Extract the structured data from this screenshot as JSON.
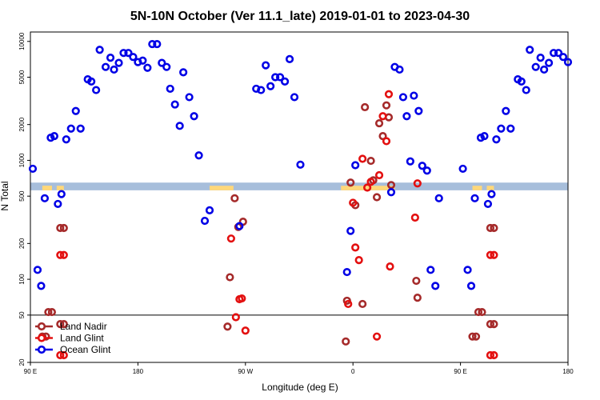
{
  "chart_data": {
    "type": "scatter",
    "title": "5N-10N October (Ver 11.1_late)   2019-01-01 to 2023-04-30",
    "xlabel": "Longitude (deg E)",
    "ylabel": "N Total",
    "x_scale": "longitude, centred on 0, wrapping from 90 E (left) through 180 to 180 (right)",
    "y_scale": "log",
    "ylim": [
      20,
      12000
    ],
    "x_ticks": [
      {
        "lon": 90,
        "label": "90 E"
      },
      {
        "lon": 180,
        "label": "180"
      },
      {
        "lon": -90,
        "label": "90 W"
      },
      {
        "lon": 0,
        "label": "0"
      },
      {
        "lon": 90,
        "label": "90 E"
      },
      {
        "lon": 180,
        "label": "180"
      }
    ],
    "y_ticks": [
      {
        "value": 20,
        "label": "20"
      },
      {
        "value": 50,
        "label": "50"
      },
      {
        "value": 100,
        "label": "100"
      },
      {
        "value": 200,
        "label": "200"
      },
      {
        "value": 500,
        "label": "500"
      },
      {
        "value": 1000,
        "label": "1000"
      },
      {
        "value": 2000,
        "label": "2000"
      },
      {
        "value": 5000,
        "label": "5000"
      },
      {
        "value": 10000,
        "label": "10000"
      }
    ],
    "reference_line": 50,
    "grid": false,
    "legend_position": "bottom-left",
    "colors": {
      "land_band": "#a7bedb",
      "land_fill": "#ffd87a",
      "frame": "#000000"
    },
    "series": [
      {
        "name": "Land Nadir",
        "color": "#a52a2a",
        "points": [
          {
            "lon": 100,
            "n": 33
          },
          {
            "lon": 105,
            "n": 53
          },
          {
            "lon": 115,
            "n": 270
          },
          {
            "lon": 115,
            "n": 42
          },
          {
            "lon": -105,
            "n": 40
          },
          {
            "lon": -103,
            "n": 104
          },
          {
            "lon": -99,
            "n": 480
          },
          {
            "lon": -96,
            "n": 275
          },
          {
            "lon": -92,
            "n": 305
          },
          {
            "lon": -6,
            "n": 30
          },
          {
            "lon": -5,
            "n": 66
          },
          {
            "lon": -2,
            "n": 650
          },
          {
            "lon": 2,
            "n": 420
          },
          {
            "lon": 8,
            "n": 62
          },
          {
            "lon": 10,
            "n": 2800
          },
          {
            "lon": 15,
            "n": 990
          },
          {
            "lon": 17,
            "n": 680
          },
          {
            "lon": 20,
            "n": 490
          },
          {
            "lon": 22,
            "n": 2050
          },
          {
            "lon": 25,
            "n": 1600
          },
          {
            "lon": 28,
            "n": 2900
          },
          {
            "lon": 30,
            "n": 2300
          },
          {
            "lon": 32,
            "n": 620
          },
          {
            "lon": 53,
            "n": 97
          },
          {
            "lon": 54,
            "n": 70
          },
          {
            "lon": 103,
            "n": 33
          },
          {
            "lon": 108,
            "n": 53
          },
          {
            "lon": 118,
            "n": 270
          },
          {
            "lon": 118,
            "n": 42
          }
        ]
      },
      {
        "name": "Land Glint",
        "color": "#e31010",
        "points": [
          {
            "lon": 115,
            "n": 160
          },
          {
            "lon": 115,
            "n": 23
          },
          {
            "lon": -102,
            "n": 220
          },
          {
            "lon": -98,
            "n": 48
          },
          {
            "lon": -95,
            "n": 68
          },
          {
            "lon": -93,
            "n": 69
          },
          {
            "lon": -90,
            "n": 37
          },
          {
            "lon": -4,
            "n": 62
          },
          {
            "lon": 0,
            "n": 440
          },
          {
            "lon": 2,
            "n": 185
          },
          {
            "lon": 5,
            "n": 145
          },
          {
            "lon": 8,
            "n": 1030
          },
          {
            "lon": 12,
            "n": 590
          },
          {
            "lon": 15,
            "n": 660
          },
          {
            "lon": 22,
            "n": 750
          },
          {
            "lon": 25,
            "n": 2350
          },
          {
            "lon": 28,
            "n": 1450
          },
          {
            "lon": 30,
            "n": 3600
          },
          {
            "lon": 31,
            "n": 128
          },
          {
            "lon": 20,
            "n": 33
          },
          {
            "lon": 52,
            "n": 330
          },
          {
            "lon": 54,
            "n": 640
          },
          {
            "lon": 118,
            "n": 160
          },
          {
            "lon": 118,
            "n": 23
          }
        ]
      },
      {
        "name": "Ocean Glint",
        "color": "#0000e6",
        "points": [
          {
            "lon": 92,
            "n": 850
          },
          {
            "lon": 96,
            "n": 120
          },
          {
            "lon": 99,
            "n": 88
          },
          {
            "lon": 102,
            "n": 480
          },
          {
            "lon": 107,
            "n": 1550
          },
          {
            "lon": 110,
            "n": 1600
          },
          {
            "lon": 113,
            "n": 430
          },
          {
            "lon": 116,
            "n": 520
          },
          {
            "lon": 120,
            "n": 1500
          },
          {
            "lon": 124,
            "n": 1850
          },
          {
            "lon": 128,
            "n": 2600
          },
          {
            "lon": 132,
            "n": 1850
          },
          {
            "lon": 138,
            "n": 4800
          },
          {
            "lon": 141,
            "n": 4600
          },
          {
            "lon": 145,
            "n": 3900
          },
          {
            "lon": 148,
            "n": 8500
          },
          {
            "lon": 153,
            "n": 6100
          },
          {
            "lon": 157,
            "n": 7300
          },
          {
            "lon": 160,
            "n": 5800
          },
          {
            "lon": 164,
            "n": 6600
          },
          {
            "lon": 168,
            "n": 8000
          },
          {
            "lon": 172,
            "n": 8000
          },
          {
            "lon": 176,
            "n": 7400
          },
          {
            "lon": 180,
            "n": 6700
          },
          {
            "lon": -176,
            "n": 6900
          },
          {
            "lon": -172,
            "n": 6000
          },
          {
            "lon": -168,
            "n": 9500
          },
          {
            "lon": -164,
            "n": 9500
          },
          {
            "lon": -160,
            "n": 6600
          },
          {
            "lon": -156,
            "n": 6100
          },
          {
            "lon": -153,
            "n": 4000
          },
          {
            "lon": -149,
            "n": 2950
          },
          {
            "lon": -145,
            "n": 1950
          },
          {
            "lon": -142,
            "n": 5500
          },
          {
            "lon": -137,
            "n": 3400
          },
          {
            "lon": -133,
            "n": 2350
          },
          {
            "lon": -129,
            "n": 1100
          },
          {
            "lon": -124,
            "n": 310
          },
          {
            "lon": -120,
            "n": 380
          },
          {
            "lon": -95,
            "n": 280
          },
          {
            "lon": -81,
            "n": 4000
          },
          {
            "lon": -77,
            "n": 3900
          },
          {
            "lon": -73,
            "n": 6300
          },
          {
            "lon": -69,
            "n": 4200
          },
          {
            "lon": -65,
            "n": 5000
          },
          {
            "lon": -61,
            "n": 5000
          },
          {
            "lon": -57,
            "n": 4600
          },
          {
            "lon": -53,
            "n": 7100
          },
          {
            "lon": -49,
            "n": 3400
          },
          {
            "lon": -44,
            "n": 920
          },
          {
            "lon": -2,
            "n": 255
          },
          {
            "lon": -5,
            "n": 115
          },
          {
            "lon": 2,
            "n": 910
          },
          {
            "lon": 32,
            "n": 540
          },
          {
            "lon": 35,
            "n": 6100
          },
          {
            "lon": 39,
            "n": 5800
          },
          {
            "lon": 42,
            "n": 3400
          },
          {
            "lon": 45,
            "n": 2350
          },
          {
            "lon": 48,
            "n": 980
          },
          {
            "lon": 51,
            "n": 3500
          },
          {
            "lon": 55,
            "n": 2600
          },
          {
            "lon": 58,
            "n": 900
          },
          {
            "lon": 62,
            "n": 820
          },
          {
            "lon": 65,
            "n": 120
          },
          {
            "lon": 69,
            "n": 88
          },
          {
            "lon": 72,
            "n": 480
          }
        ]
      }
    ]
  }
}
